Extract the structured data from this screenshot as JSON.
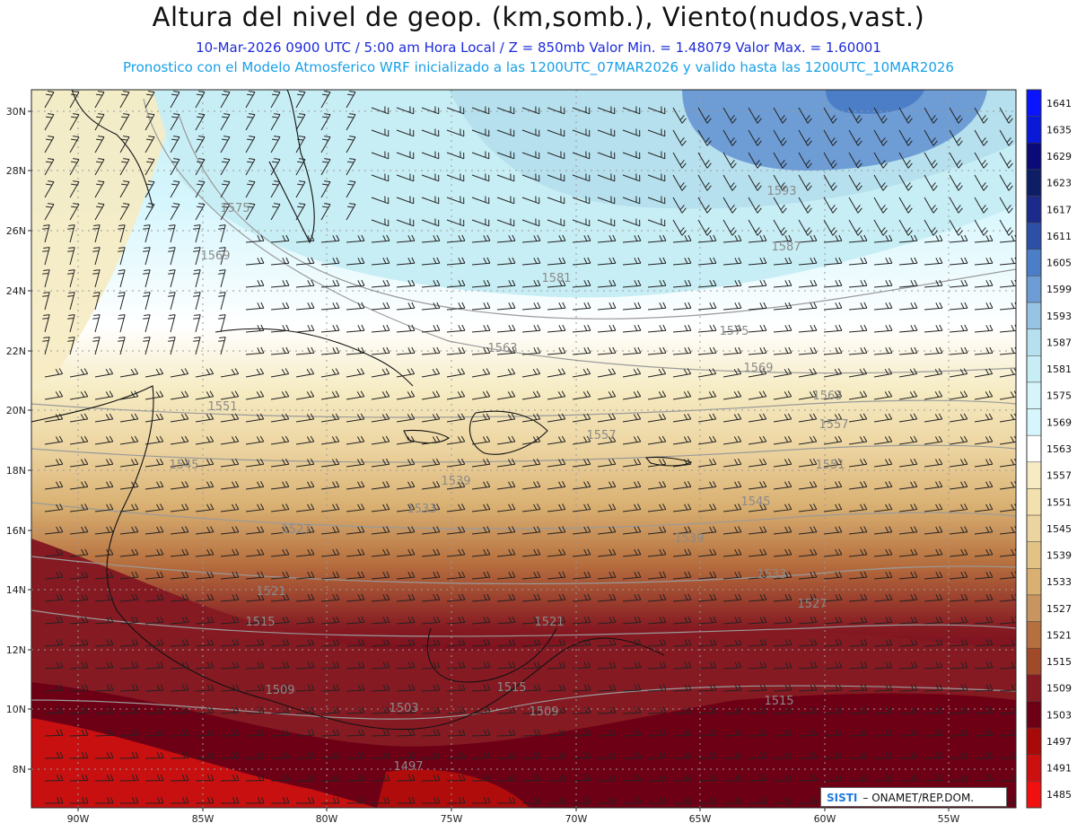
{
  "header": {
    "title": "Altura del nivel de geop. (km,somb.), Viento(nudos,vast.)",
    "subtitle_line1": "10-Mar-2026  0900 UTC / 5:00 am Hora Local / Z = 850mb     Valor Min. = 1.48079  Valor Max. = 1.60001",
    "subtitle_line2": "Pronostico con el Modelo Atmosferico WRF inicializado a las 1200UTC_07MAR2026 y valido hasta las  1200UTC_10MAR2026"
  },
  "axes": {
    "lat_labels": [
      "30N",
      "28N",
      "26N",
      "24N",
      "22N",
      "20N",
      "18N",
      "16N",
      "14N",
      "12N",
      "10N",
      "8N"
    ],
    "lon_labels": [
      "90W",
      "85W",
      "80W",
      "75W",
      "70W",
      "65W",
      "60W",
      "55W"
    ]
  },
  "legend": {
    "levels": [
      "1641",
      "1635",
      "1629",
      "1623",
      "1617",
      "1611",
      "1605",
      "1599",
      "1593",
      "1587",
      "1581",
      "1575",
      "1569",
      "1563",
      "1557",
      "1551",
      "1545",
      "1539",
      "1533",
      "1527",
      "1521",
      "1515",
      "1509",
      "1503",
      "1497",
      "1491",
      "1485"
    ],
    "colors": [
      "#0a14ff",
      "#0a18d8",
      "#0a0a78",
      "#0d1e66",
      "#1c2a8c",
      "#2e4fa8",
      "#4b7ec6",
      "#6e9dd6",
      "#97c4e4",
      "#b6e0ee",
      "#c8eef5",
      "#d6f4fa",
      "#d6f6fd",
      "#ffffff",
      "#f6ebc2",
      "#f2e1ae",
      "#ecd4a0",
      "#e2c285",
      "#d9b072",
      "#c89460",
      "#b66f3e",
      "#a04a2a",
      "#861a22",
      "#6e0016",
      "#a80a0a",
      "#cc1010",
      "#f01010"
    ]
  },
  "contour_labels": [
    "1575",
    "1569",
    "1581",
    "1587",
    "1593",
    "1575",
    "1569",
    "1563",
    "1557",
    "1551",
    "1545",
    "1539",
    "1533",
    "1527",
    "1521",
    "1515",
    "1509",
    "1503",
    "1497",
    "1563",
    "1557",
    "1551",
    "1545",
    "1539",
    "1533",
    "1527",
    "1521",
    "1515",
    "1509",
    "1515"
  ],
  "credit": {
    "logo": "SISTI",
    "text": "– ONAMET/REP.DOM."
  }
}
